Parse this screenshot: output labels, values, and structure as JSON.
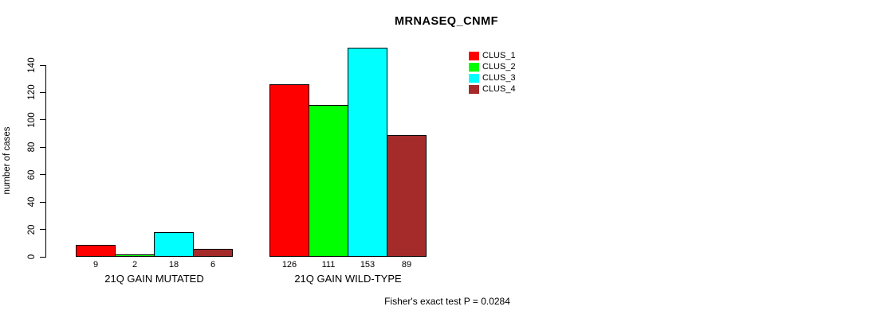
{
  "chart_data": {
    "type": "bar",
    "title": "MRNASEQ_CNMF",
    "xlabel": "",
    "ylabel": "number of cases",
    "categories": [
      "21Q GAIN MUTATED",
      "21Q GAIN WILD-TYPE"
    ],
    "series": [
      {
        "name": "CLUS_1",
        "color": "#ff0000",
        "values": [
          9,
          126
        ]
      },
      {
        "name": "CLUS_2",
        "color": "#00ff00",
        "values": [
          2,
          111
        ]
      },
      {
        "name": "CLUS_3",
        "color": "#00ffff",
        "values": [
          18,
          153
        ]
      },
      {
        "name": "CLUS_4",
        "color": "#a52a2a",
        "values": [
          6,
          89
        ]
      }
    ],
    "bar_value_labels": [
      [
        9,
        2,
        18,
        6
      ],
      [
        126,
        111,
        153,
        89
      ]
    ],
    "yticks": [
      0,
      20,
      40,
      60,
      80,
      100,
      120,
      140
    ],
    "ylim": [
      0,
      140
    ],
    "grid": false,
    "legend_position": "top-right",
    "annotation": "Fisher's exact test P = 0.0284"
  }
}
